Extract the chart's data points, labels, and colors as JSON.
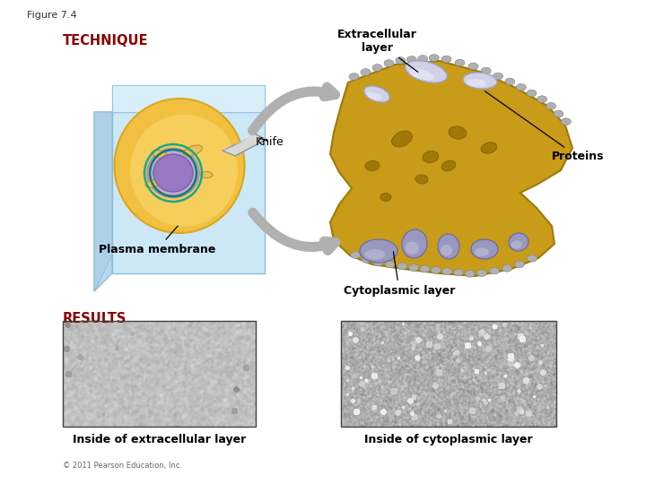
{
  "title": "Figure 7.4",
  "technique_label": "TECHNIQUE",
  "results_label": "RESULTS",
  "labels": {
    "extracellular_layer": "Extracellular\nlayer",
    "proteins": "Proteins",
    "knife": "Knife",
    "plasma_membrane": "Plasma membrane",
    "cytoplasmic_layer": "Cytoplasmic layer",
    "inside_extracellular": "Inside of extracellular layer",
    "inside_cytoplasmic": "Inside of cytoplasmic layer",
    "copyright": "© 2011 Pearson Education, Inc."
  },
  "colors": {
    "background": "#ffffff",
    "technique_color": "#8b0000",
    "results_color": "#8b0000",
    "title_color": "#333333",
    "label_color": "#000000",
    "cell_blue_light": "#cce8f4",
    "cell_blue_mid": "#a8d4ea",
    "cell_yellow": "#f5c842",
    "cell_yellow_dark": "#e8b830",
    "nucleus_outer": "#c8b8d8",
    "nucleus_inner": "#9878c8",
    "nucleus_core": "#7858a8",
    "organelle_green": "#2a9070",
    "membrane_gold": "#c89818",
    "membrane_dark": "#a07808",
    "protein_light": "#b8b8d8",
    "protein_mid": "#9898c0",
    "protein_dark": "#7878a8",
    "arrow_gray": "#b0b0b0",
    "arrow_dark": "#909090",
    "knife_light": "#e0e0e0",
    "knife_dark": "#b0b0b0",
    "copyright_color": "#666666",
    "bump_gold": "#b08808",
    "bump_dark": "#907000"
  },
  "figsize": [
    7.2,
    5.4
  ],
  "dpi": 100
}
